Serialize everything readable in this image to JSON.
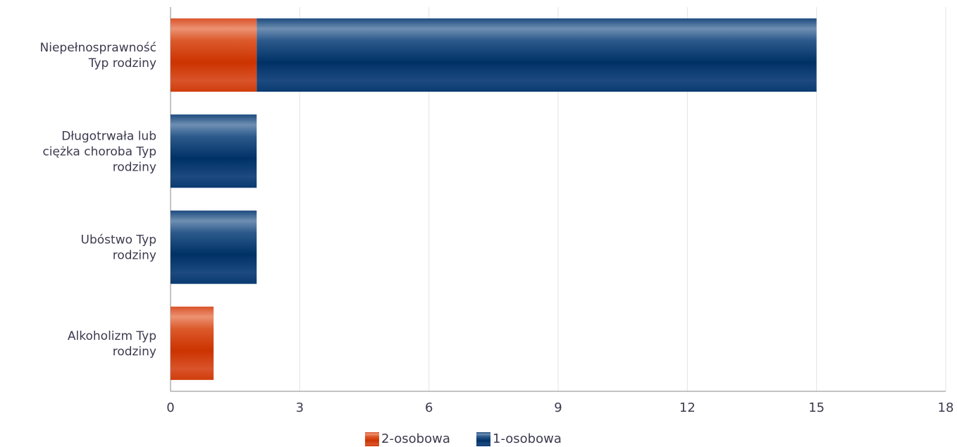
{
  "chart_data": {
    "type": "bar",
    "orientation": "horizontal",
    "stacked": true,
    "categories": [
      "Niepełnosprawność Typ rodziny",
      "Długotrwała lub ciężka choroba Typ rodziny",
      "Ubóstwo Typ rodziny",
      "Alkoholizm Typ rodziny"
    ],
    "category_lines": [
      [
        "Niepełnosprawność",
        "Typ rodziny"
      ],
      [
        "Długotrwała lub",
        "ciężka choroba Typ",
        "rodziny"
      ],
      [
        "Ubóstwo Typ",
        "rodziny"
      ],
      [
        "Alkoholizm Typ",
        "rodziny"
      ]
    ],
    "series": [
      {
        "name": "2-osobowa",
        "values": [
          2,
          0,
          0,
          1
        ],
        "color": "#d63c0c"
      },
      {
        "name": "1-osobowa",
        "values": [
          13,
          2,
          2,
          0
        ],
        "color": "#0b3a6e"
      }
    ],
    "xlim": [
      0,
      18
    ],
    "xticks": [
      "0",
      "3",
      "6",
      "9",
      "12",
      "15",
      "18"
    ],
    "grid": true,
    "legend": "bottom-center"
  }
}
